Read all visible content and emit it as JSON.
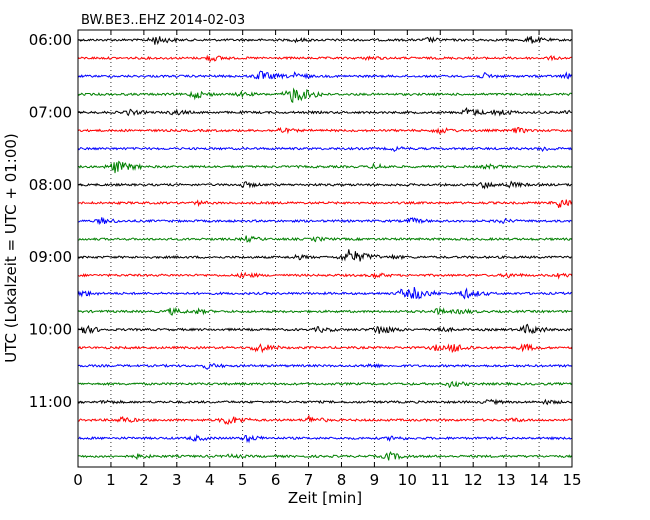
{
  "chart_data": {
    "type": "line",
    "title": "BW.BE3..EHZ 2014-02-03",
    "xlabel": "Zeit  [min]",
    "ylabel": "UTC (Lokalzeit = UTC + 01:00)",
    "xlim": [
      0,
      15
    ],
    "x_ticks": [
      "0",
      "1",
      "2",
      "3",
      "4",
      "5",
      "6",
      "7",
      "8",
      "9",
      "10",
      "11",
      "12",
      "13",
      "14",
      "15"
    ],
    "y_ticks": [
      "06:00",
      "07:00",
      "08:00",
      "09:00",
      "10:00",
      "11:00"
    ],
    "grid": "vertical dotted",
    "trace_interval_min": 15,
    "trace_colors": [
      "#000000",
      "#ff0000",
      "#0000ff",
      "#008000"
    ],
    "traces": [
      {
        "start": "06:00",
        "events": [
          [
            2.3,
            0.5
          ],
          [
            6.6,
            0.2
          ],
          [
            10.6,
            0.25
          ],
          [
            13.7,
            0.4
          ]
        ]
      },
      {
        "start": "06:15",
        "events": [
          [
            4.0,
            0.35
          ],
          [
            8.8,
            0.2
          ],
          [
            14.3,
            0.15
          ]
        ]
      },
      {
        "start": "06:30",
        "events": [
          [
            5.5,
            0.55
          ],
          [
            6.5,
            0.4
          ],
          [
            12.3,
            0.3
          ],
          [
            14.8,
            0.3
          ]
        ]
      },
      {
        "start": "06:45",
        "events": [
          [
            3.5,
            0.45
          ],
          [
            6.5,
            0.9
          ],
          [
            4.9,
            0.25
          ]
        ]
      },
      {
        "start": "07:00",
        "events": [
          [
            1.5,
            0.3
          ],
          [
            2.9,
            0.3
          ],
          [
            11.8,
            0.45
          ],
          [
            12.7,
            0.4
          ],
          [
            14.9,
            0.35
          ]
        ]
      },
      {
        "start": "07:15",
        "events": [
          [
            6.1,
            0.3
          ],
          [
            10.9,
            0.35
          ],
          [
            13.3,
            0.3
          ]
        ]
      },
      {
        "start": "07:30",
        "events": [
          [
            14.1,
            0.25
          ],
          [
            9.6,
            0.2
          ]
        ]
      },
      {
        "start": "07:45",
        "events": [
          [
            1.1,
            0.7
          ],
          [
            9.0,
            0.3
          ],
          [
            12.4,
            0.25
          ]
        ]
      },
      {
        "start": "08:00",
        "events": [
          [
            5.0,
            0.3
          ],
          [
            12.3,
            0.35
          ],
          [
            13.1,
            0.3
          ]
        ]
      },
      {
        "start": "08:15",
        "events": [
          [
            14.6,
            0.55
          ],
          [
            3.6,
            0.2
          ]
        ]
      },
      {
        "start": "08:30",
        "events": [
          [
            0.7,
            0.35
          ],
          [
            10.1,
            0.3
          ],
          [
            12.8,
            0.25
          ]
        ]
      },
      {
        "start": "08:45",
        "events": [
          [
            5.1,
            0.3
          ],
          [
            7.2,
            0.2
          ]
        ]
      },
      {
        "start": "09:00",
        "events": [
          [
            8.2,
            0.85
          ],
          [
            6.6,
            0.25
          ],
          [
            9.5,
            0.2
          ]
        ]
      },
      {
        "start": "09:15",
        "events": [
          [
            5.0,
            0.3
          ],
          [
            9.0,
            0.25
          ],
          [
            13.0,
            0.25
          ],
          [
            14.6,
            0.25
          ]
        ]
      },
      {
        "start": "09:30",
        "events": [
          [
            0.1,
            0.3
          ],
          [
            9.8,
            0.4
          ],
          [
            10.2,
            0.6
          ],
          [
            11.7,
            0.55
          ]
        ]
      },
      {
        "start": "09:45",
        "events": [
          [
            2.8,
            0.35
          ],
          [
            3.6,
            0.25
          ],
          [
            10.9,
            0.3
          ],
          [
            11.6,
            0.25
          ]
        ]
      },
      {
        "start": "10:00",
        "events": [
          [
            0.1,
            0.5
          ],
          [
            7.3,
            0.3
          ],
          [
            9.1,
            0.55
          ],
          [
            13.6,
            0.55
          ],
          [
            10.9,
            0.3
          ]
        ]
      },
      {
        "start": "10:15",
        "events": [
          [
            5.4,
            0.55
          ],
          [
            10.8,
            0.3
          ],
          [
            11.4,
            0.5
          ],
          [
            13.5,
            0.4
          ]
        ]
      },
      {
        "start": "10:30",
        "events": [
          [
            3.9,
            0.3
          ],
          [
            8.8,
            0.2
          ]
        ]
      },
      {
        "start": "10:45",
        "events": [
          [
            11.3,
            0.35
          ]
        ]
      },
      {
        "start": "11:00",
        "events": [
          [
            0.8,
            0.2
          ],
          [
            12.4,
            0.25
          ],
          [
            14.2,
            0.2
          ]
        ]
      },
      {
        "start": "11:15",
        "events": [
          [
            1.3,
            0.35
          ],
          [
            4.5,
            0.55
          ],
          [
            7.0,
            0.4
          ],
          [
            13.2,
            0.2
          ]
        ]
      },
      {
        "start": "11:30",
        "events": [
          [
            3.5,
            0.3
          ],
          [
            5.1,
            0.35
          ],
          [
            9.5,
            0.25
          ]
        ]
      },
      {
        "start": "11:45",
        "events": [
          [
            9.4,
            0.45
          ],
          [
            4.6,
            0.2
          ],
          [
            1.8,
            0.2
          ]
        ]
      }
    ]
  }
}
